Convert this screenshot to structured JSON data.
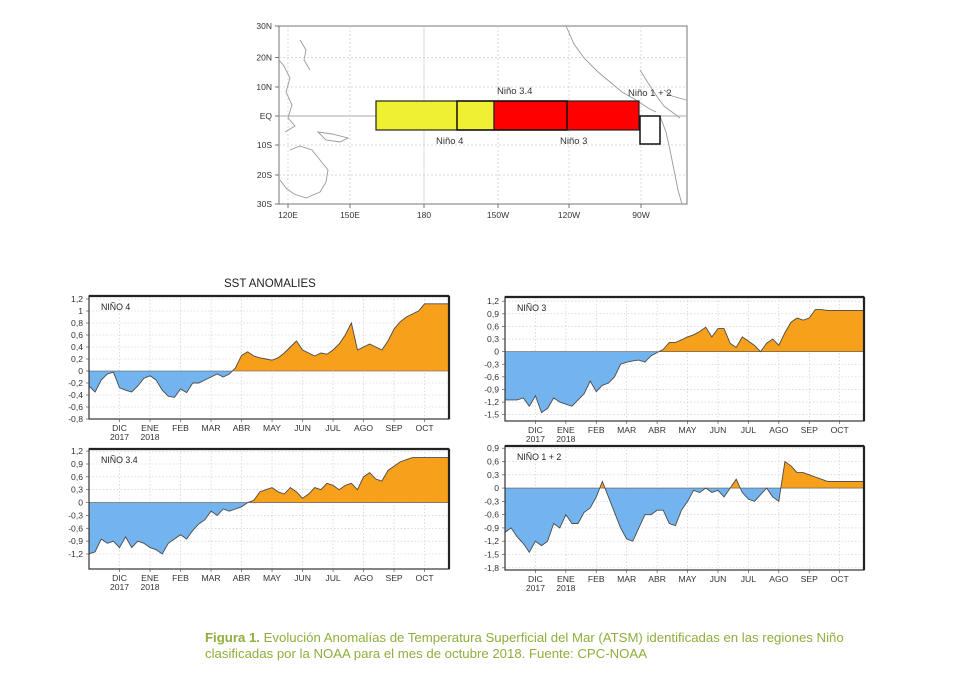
{
  "map": {
    "lat_labels": [
      "30N",
      "20N",
      "10N",
      "EQ",
      "10S",
      "20S",
      "30S"
    ],
    "lon_labels": [
      "120E",
      "150E",
      "180",
      "150W",
      "120W",
      "90W"
    ],
    "regions": [
      {
        "label": "Niño 4",
        "color": "#f0f032"
      },
      {
        "label": "Niño 3.4",
        "color": ""
      },
      {
        "label": "Niño 3",
        "color": "#ff0000"
      },
      {
        "label": "Niño 1 + 2",
        "color": "#ffffff"
      }
    ]
  },
  "chart_data": [
    {
      "type": "area",
      "title": "SST ANOMALIES",
      "label": "NIÑO 4",
      "ylim": [
        -0.8,
        1.25
      ],
      "yticks": [
        "1,2",
        "1",
        "0,8",
        "0,6",
        "0,4",
        "0,2",
        "0",
        "-0,2",
        "-0,4",
        "-0,6",
        "-0,8"
      ],
      "month_labels": [
        "DIC",
        "ENE",
        "FEB",
        "MAR",
        "ABR",
        "MAY",
        "JUN",
        "JUL",
        "AGO",
        "SEP",
        "OCT"
      ],
      "year_labels": [
        "2017",
        "2018"
      ],
      "positive_color": "#f7a01c",
      "negative_color": "#73b4ef",
      "x": [
        0,
        0.2,
        0.4,
        0.6,
        0.8,
        1,
        1.2,
        1.4,
        1.6,
        1.8,
        2,
        2.2,
        2.4,
        2.6,
        2.8,
        3,
        3.2,
        3.4,
        3.6,
        3.8,
        4,
        4.2,
        4.4,
        4.6,
        4.8,
        5,
        5.2,
        5.4,
        5.6,
        5.8,
        6,
        6.2,
        6.4,
        6.6,
        6.8,
        7,
        7.2,
        7.4,
        7.6,
        7.8,
        8,
        8.2,
        8.4,
        8.6,
        8.8,
        9,
        9.2,
        9.4,
        9.6,
        9.8,
        10,
        10.2,
        10.4,
        10.6,
        10.8,
        11,
        11.2,
        11.4,
        11.6,
        11.8
      ],
      "values": [
        -0.25,
        -0.35,
        -0.15,
        -0.05,
        -0.02,
        -0.28,
        -0.32,
        -0.35,
        -0.25,
        -0.12,
        -0.08,
        -0.15,
        -0.32,
        -0.42,
        -0.44,
        -0.3,
        -0.36,
        -0.2,
        -0.2,
        -0.15,
        -0.1,
        -0.05,
        -0.1,
        -0.05,
        0.05,
        0.26,
        0.32,
        0.25,
        0.22,
        0.2,
        0.18,
        0.22,
        0.3,
        0.4,
        0.5,
        0.35,
        0.3,
        0.25,
        0.3,
        0.28,
        0.35,
        0.45,
        0.6,
        0.8,
        0.35,
        0.4,
        0.45,
        0.4,
        0.35,
        0.5,
        0.7,
        0.82,
        0.9,
        0.95,
        1.0,
        1.12,
        1.12,
        1.12,
        1.12,
        1.12
      ]
    },
    {
      "type": "area",
      "label": "NIÑO 3",
      "ylim": [
        -1.65,
        1.3
      ],
      "yticks": [
        "1,2",
        "0,9",
        "0,6",
        "0,3",
        "0",
        "-0,3",
        "-0,6",
        "-0,9",
        "-1,2",
        "-1,5"
      ],
      "month_labels": [
        "DIC",
        "ENE",
        "FEB",
        "MAR",
        "ABR",
        "MAY",
        "JUN",
        "JUL",
        "AGO",
        "SEP",
        "OCT"
      ],
      "year_labels": [
        "2017",
        "2018"
      ],
      "positive_color": "#f7a01c",
      "negative_color": "#73b4ef",
      "x": [
        0,
        0.2,
        0.4,
        0.6,
        0.8,
        1,
        1.2,
        1.4,
        1.6,
        1.8,
        2,
        2.2,
        2.4,
        2.6,
        2.8,
        3,
        3.2,
        3.4,
        3.6,
        3.8,
        4,
        4.2,
        4.4,
        4.6,
        4.8,
        5,
        5.2,
        5.4,
        5.6,
        5.8,
        6,
        6.2,
        6.4,
        6.6,
        6.8,
        7,
        7.2,
        7.4,
        7.6,
        7.8,
        8,
        8.2,
        8.4,
        8.6,
        8.8,
        9,
        9.2,
        9.4,
        9.6,
        9.8,
        10,
        10.2,
        10.4,
        10.6,
        10.8,
        11,
        11.2,
        11.4,
        11.6,
        11.8
      ],
      "values": [
        -1.15,
        -1.15,
        -1.15,
        -1.1,
        -1.3,
        -1.05,
        -1.45,
        -1.35,
        -1.1,
        -1.2,
        -1.25,
        -1.3,
        -1.15,
        -1.0,
        -0.7,
        -0.95,
        -0.8,
        -0.75,
        -0.6,
        -0.3,
        -0.25,
        -0.22,
        -0.2,
        -0.25,
        -0.1,
        -0.02,
        0.05,
        0.22,
        0.22,
        0.28,
        0.35,
        0.4,
        0.48,
        0.58,
        0.35,
        0.55,
        0.55,
        0.2,
        0.1,
        0.35,
        0.25,
        0.15,
        0.0,
        0.2,
        0.3,
        0.15,
        0.45,
        0.7,
        0.8,
        0.75,
        0.8,
        1.0,
        1.0,
        0.98,
        0.98,
        0.98,
        0.98,
        0.98,
        0.98,
        0.98
      ]
    },
    {
      "type": "area",
      "label": "NIÑO 3.4",
      "ylim": [
        -1.55,
        1.25
      ],
      "yticks": [
        "1,2",
        "0,9",
        "0,6",
        "0,3",
        "0",
        "-0,3",
        "-0,6",
        "-0,9",
        "-1,2"
      ],
      "month_labels": [
        "DIC",
        "ENE",
        "FEB",
        "MAR",
        "ABR",
        "MAY",
        "JUN",
        "JUL",
        "AGO",
        "SEP",
        "OCT"
      ],
      "year_labels": [
        "2017",
        "2018"
      ],
      "positive_color": "#f7a01c",
      "negative_color": "#73b4ef",
      "x": [
        0,
        0.2,
        0.4,
        0.6,
        0.8,
        1,
        1.2,
        1.4,
        1.6,
        1.8,
        2,
        2.2,
        2.4,
        2.6,
        2.8,
        3,
        3.2,
        3.4,
        3.6,
        3.8,
        4,
        4.2,
        4.4,
        4.6,
        4.8,
        5,
        5.2,
        5.4,
        5.6,
        5.8,
        6,
        6.2,
        6.4,
        6.6,
        6.8,
        7,
        7.2,
        7.4,
        7.6,
        7.8,
        8,
        8.2,
        8.4,
        8.6,
        8.8,
        9,
        9.2,
        9.4,
        9.6,
        9.8,
        10,
        10.2,
        10.4,
        10.6,
        10.8,
        11,
        11.2,
        11.4,
        11.6,
        11.8
      ],
      "values": [
        -1.2,
        -1.15,
        -0.85,
        -0.95,
        -0.9,
        -1.05,
        -0.8,
        -1.05,
        -0.9,
        -0.95,
        -1.05,
        -1.1,
        -1.2,
        -0.95,
        -0.85,
        -0.75,
        -0.85,
        -0.65,
        -0.5,
        -0.4,
        -0.2,
        -0.3,
        -0.15,
        -0.2,
        -0.15,
        -0.1,
        0.0,
        0.05,
        0.25,
        0.3,
        0.35,
        0.25,
        0.2,
        0.35,
        0.25,
        0.1,
        0.2,
        0.35,
        0.3,
        0.45,
        0.4,
        0.3,
        0.4,
        0.45,
        0.3,
        0.6,
        0.7,
        0.55,
        0.5,
        0.75,
        0.85,
        0.95,
        1.0,
        1.05,
        1.05,
        1.05,
        1.05,
        1.05,
        1.05,
        1.05
      ]
    },
    {
      "type": "area",
      "label": "NIÑO 1 + 2",
      "ylim": [
        -1.85,
        0.95
      ],
      "yticks": [
        "0,9",
        "0,6",
        "0,3",
        "0",
        "-0,3",
        "-0,6",
        "-0,9",
        "-1,2",
        "-1,5",
        "-1,8"
      ],
      "month_labels": [
        "DIC",
        "ENE",
        "FEB",
        "MAR",
        "ABR",
        "MAY",
        "JUN",
        "JUL",
        "AGO",
        "SEP",
        "OCT"
      ],
      "year_labels": [
        "2017",
        "2018"
      ],
      "positive_color": "#f7a01c",
      "negative_color": "#73b4ef",
      "x": [
        0,
        0.2,
        0.4,
        0.6,
        0.8,
        1,
        1.2,
        1.4,
        1.6,
        1.8,
        2,
        2.2,
        2.4,
        2.6,
        2.8,
        3,
        3.2,
        3.4,
        3.6,
        3.8,
        4,
        4.2,
        4.4,
        4.6,
        4.8,
        5,
        5.2,
        5.4,
        5.6,
        5.8,
        6,
        6.2,
        6.4,
        6.6,
        6.8,
        7,
        7.2,
        7.4,
        7.6,
        7.8,
        8,
        8.2,
        8.4,
        8.6,
        8.8,
        9,
        9.2,
        9.4,
        9.6,
        9.8,
        10,
        10.2,
        10.4,
        10.6,
        10.8,
        11,
        11.2,
        11.4,
        11.6,
        11.8
      ],
      "values": [
        -1.0,
        -0.9,
        -1.1,
        -1.25,
        -1.45,
        -1.2,
        -1.3,
        -1.2,
        -0.8,
        -0.9,
        -0.6,
        -0.8,
        -0.8,
        -0.55,
        -0.45,
        -0.2,
        0.15,
        -0.2,
        -0.55,
        -0.9,
        -1.15,
        -1.2,
        -0.9,
        -0.6,
        -0.6,
        -0.5,
        -0.5,
        -0.8,
        -0.85,
        -0.5,
        -0.3,
        -0.05,
        -0.1,
        0.0,
        -0.1,
        -0.05,
        -0.2,
        0.0,
        0.2,
        -0.1,
        -0.25,
        -0.3,
        -0.15,
        0.0,
        -0.2,
        -0.3,
        0.6,
        0.5,
        0.35,
        0.35,
        0.3,
        0.25,
        0.2,
        0.15,
        0.15,
        0.15,
        0.15,
        0.15,
        0.15,
        0.15
      ]
    }
  ],
  "caption": {
    "bold": "Figura 1.",
    "text": " Evolución Anomalías de Temperatura Superficial del Mar (ATSM) identificadas en las regiones Niño clasificadas por la NOAA para el mes de octubre 2018. Fuente: CPC-NOAA"
  }
}
